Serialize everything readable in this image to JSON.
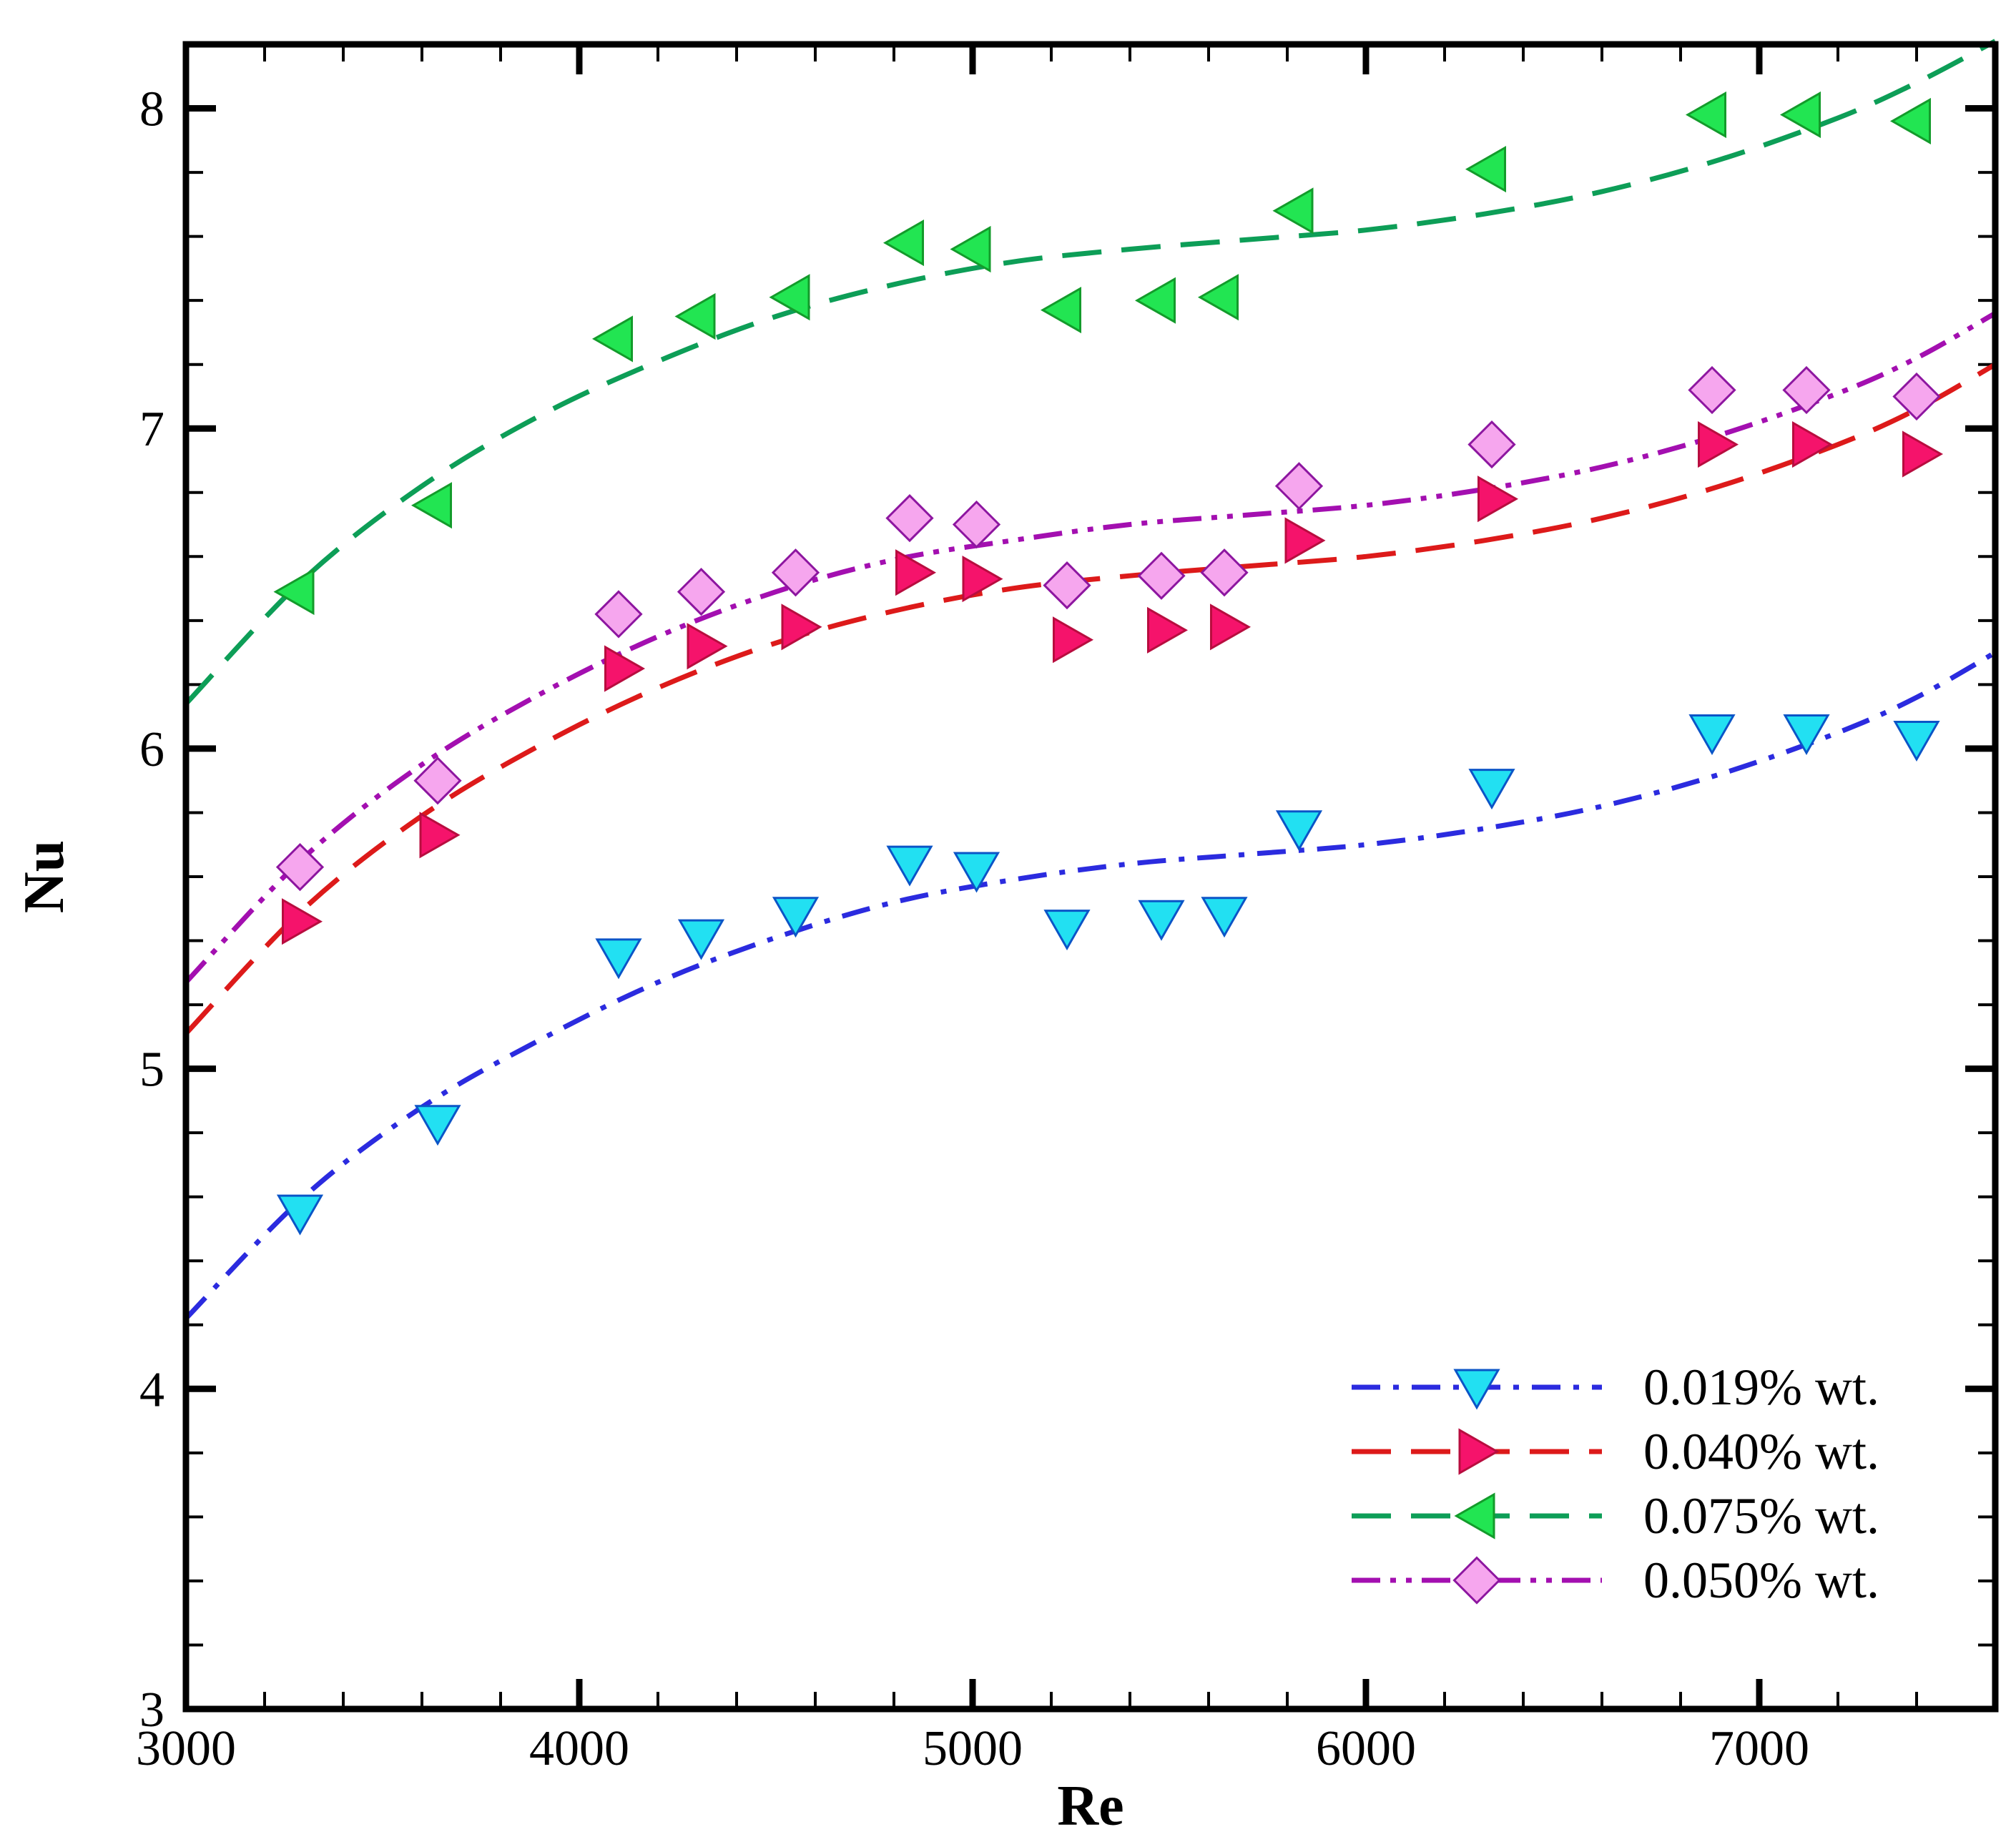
{
  "chart_data": {
    "type": "scatter",
    "title": "",
    "xlabel": "Re",
    "ylabel": "Nu",
    "xlim": [
      3000,
      7600
    ],
    "ylim": [
      3,
      8.2
    ],
    "x_ticks": [
      3000,
      4000,
      5000,
      6000,
      7000
    ],
    "x_tick_labels": [
      "3000",
      "4000",
      "5000",
      "6000",
      "7000"
    ],
    "y_ticks": [
      3,
      4,
      5,
      6,
      7,
      8
    ],
    "y_tick_labels": [
      "3",
      "4",
      "5",
      "6",
      "7",
      "8"
    ],
    "grid": false,
    "legend_position": "bottom-right",
    "series": [
      {
        "name": "0.019% wt.",
        "line_color": "#2b2bdf",
        "marker": "triangle-down",
        "marker_fill": "#22e0f2",
        "marker_stroke": "#0b55c7",
        "line_style": "dash-dot",
        "points": [
          [
            3290,
            4.55
          ],
          [
            3640,
            4.83
          ],
          [
            4100,
            5.35
          ],
          [
            4310,
            5.41
          ],
          [
            4550,
            5.48
          ],
          [
            4840,
            5.64
          ],
          [
            5010,
            5.62
          ],
          [
            5240,
            5.44
          ],
          [
            5480,
            5.47
          ],
          [
            5640,
            5.48
          ],
          [
            5830,
            5.75
          ],
          [
            6320,
            5.88
          ],
          [
            6880,
            6.05
          ],
          [
            7120,
            6.05
          ],
          [
            7400,
            6.03
          ]
        ],
        "fit": [
          [
            3000,
            4.22
          ],
          [
            3300,
            4.6
          ],
          [
            3600,
            4.88
          ],
          [
            3900,
            5.09
          ],
          [
            4200,
            5.27
          ],
          [
            4500,
            5.41
          ],
          [
            4800,
            5.52
          ],
          [
            5100,
            5.59
          ],
          [
            5400,
            5.64
          ],
          [
            5700,
            5.67
          ],
          [
            6000,
            5.7
          ],
          [
            6300,
            5.75
          ],
          [
            6600,
            5.82
          ],
          [
            6900,
            5.92
          ],
          [
            7200,
            6.05
          ],
          [
            7400,
            6.16
          ],
          [
            7600,
            6.3
          ]
        ]
      },
      {
        "name": "0.040% wt.",
        "line_color": "#dd1a1a",
        "marker": "triangle-right",
        "marker_fill": "#f5136b",
        "marker_stroke": "#b80d3f",
        "line_style": "dashed",
        "points": [
          [
            3290,
            5.46
          ],
          [
            3640,
            5.73
          ],
          [
            4110,
            6.25
          ],
          [
            4320,
            6.32
          ],
          [
            4560,
            6.38
          ],
          [
            4850,
            6.55
          ],
          [
            5020,
            6.53
          ],
          [
            5250,
            6.34
          ],
          [
            5490,
            6.37
          ],
          [
            5650,
            6.38
          ],
          [
            5840,
            6.65
          ],
          [
            6330,
            6.78
          ],
          [
            6890,
            6.95
          ],
          [
            7130,
            6.95
          ],
          [
            7410,
            6.92
          ]
        ],
        "fit": [
          [
            3000,
            5.11
          ],
          [
            3300,
            5.5
          ],
          [
            3600,
            5.79
          ],
          [
            3900,
            6.01
          ],
          [
            4200,
            6.19
          ],
          [
            4500,
            6.33
          ],
          [
            4800,
            6.43
          ],
          [
            5100,
            6.5
          ],
          [
            5400,
            6.54
          ],
          [
            5700,
            6.57
          ],
          [
            6000,
            6.6
          ],
          [
            6300,
            6.65
          ],
          [
            6600,
            6.72
          ],
          [
            6900,
            6.82
          ],
          [
            7200,
            6.95
          ],
          [
            7400,
            7.06
          ],
          [
            7600,
            7.2
          ]
        ]
      },
      {
        "name": "0.075% wt.",
        "line_color": "#0d9e57",
        "marker": "triangle-left",
        "marker_fill": "#22e552",
        "marker_stroke": "#139b2b",
        "line_style": "dashed",
        "points": [
          [
            3280,
            6.49
          ],
          [
            3630,
            6.76
          ],
          [
            4090,
            7.28
          ],
          [
            4300,
            7.35
          ],
          [
            4540,
            7.41
          ],
          [
            4830,
            7.58
          ],
          [
            5000,
            7.56
          ],
          [
            5230,
            7.37
          ],
          [
            5470,
            7.4
          ],
          [
            5630,
            7.41
          ],
          [
            5820,
            7.68
          ],
          [
            6310,
            7.81
          ],
          [
            6870,
            7.98
          ],
          [
            7110,
            7.98
          ],
          [
            7390,
            7.96
          ]
        ],
        "fit": [
          [
            3000,
            6.14
          ],
          [
            3300,
            6.53
          ],
          [
            3600,
            6.82
          ],
          [
            3900,
            7.04
          ],
          [
            4200,
            7.21
          ],
          [
            4500,
            7.35
          ],
          [
            4800,
            7.45
          ],
          [
            5100,
            7.52
          ],
          [
            5400,
            7.56
          ],
          [
            5700,
            7.59
          ],
          [
            6000,
            7.62
          ],
          [
            6300,
            7.67
          ],
          [
            6600,
            7.74
          ],
          [
            6900,
            7.84
          ],
          [
            7200,
            7.97
          ],
          [
            7400,
            8.08
          ],
          [
            7600,
            8.21
          ]
        ]
      },
      {
        "name": "0.050% wt.",
        "line_color": "#a30fb0",
        "marker": "diamond",
        "marker_fill": "#f6a6ee",
        "marker_stroke": "#8d16a0",
        "line_style": "dash-dot-dot",
        "points": [
          [
            3290,
            5.63
          ],
          [
            3640,
            5.9
          ],
          [
            4100,
            6.42
          ],
          [
            4310,
            6.49
          ],
          [
            4550,
            6.55
          ],
          [
            4840,
            6.72
          ],
          [
            5010,
            6.7
          ],
          [
            5240,
            6.51
          ],
          [
            5480,
            6.54
          ],
          [
            5640,
            6.55
          ],
          [
            5830,
            6.82
          ],
          [
            6320,
            6.95
          ],
          [
            6880,
            7.12
          ],
          [
            7120,
            7.12
          ],
          [
            7400,
            7.1
          ]
        ],
        "fit": [
          [
            3000,
            5.27
          ],
          [
            3300,
            5.66
          ],
          [
            3600,
            5.95
          ],
          [
            3900,
            6.17
          ],
          [
            4200,
            6.35
          ],
          [
            4500,
            6.49
          ],
          [
            4800,
            6.59
          ],
          [
            5100,
            6.65
          ],
          [
            5400,
            6.7
          ],
          [
            5700,
            6.73
          ],
          [
            6000,
            6.76
          ],
          [
            6300,
            6.81
          ],
          [
            6600,
            6.88
          ],
          [
            6900,
            6.98
          ],
          [
            7200,
            7.11
          ],
          [
            7400,
            7.22
          ],
          [
            7600,
            7.36
          ]
        ]
      }
    ]
  }
}
